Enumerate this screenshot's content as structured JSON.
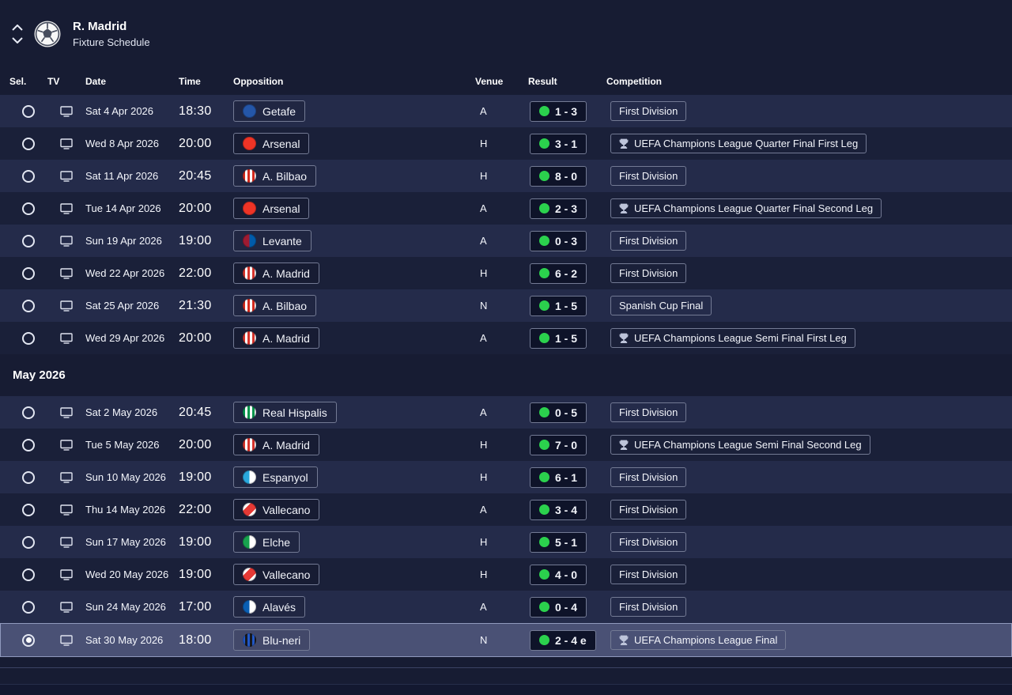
{
  "header": {
    "title": "R. Madrid",
    "subtitle": "Fixture Schedule"
  },
  "columns": {
    "sel": "Sel.",
    "tv": "TV",
    "date": "Date",
    "time": "Time",
    "opposition": "Opposition",
    "venue": "Venue",
    "result": "Result",
    "competition": "Competition"
  },
  "colors": {
    "background": "#171c33",
    "row_light": "#242b4a",
    "row_dark": "#1a2039",
    "row_selected": "#4a5175",
    "chip_border": "#737a94",
    "result_chip_bg": "#0e1329",
    "win_dot": "#2bd14d"
  },
  "table": [
    {
      "type": "fixture",
      "date": "Sat 4 Apr 2026",
      "time": "18:30",
      "opponent": "Getafe",
      "venue": "A",
      "result": "1 - 3",
      "competition": "First Division",
      "uefa": false,
      "selected": false,
      "badge": {
        "style": "solid",
        "colors": [
          "#2456a8"
        ]
      }
    },
    {
      "type": "fixture",
      "date": "Wed 8 Apr 2026",
      "time": "20:00",
      "opponent": "Arsenal",
      "venue": "H",
      "result": "3 - 1",
      "competition": "UEFA Champions League Quarter Final First Leg",
      "uefa": true,
      "selected": false,
      "badge": {
        "style": "solid",
        "colors": [
          "#ef3426"
        ]
      }
    },
    {
      "type": "fixture",
      "date": "Sat 11 Apr 2026",
      "time": "20:45",
      "opponent": "A. Bilbao",
      "venue": "H",
      "result": "8 - 0",
      "competition": "First Division",
      "uefa": false,
      "selected": false,
      "badge": {
        "style": "stripes",
        "colors": [
          "#d52b1e",
          "#ffffff"
        ]
      }
    },
    {
      "type": "fixture",
      "date": "Tue 14 Apr 2026",
      "time": "20:00",
      "opponent": "Arsenal",
      "venue": "A",
      "result": "2 - 3",
      "competition": "UEFA Champions League Quarter Final Second Leg",
      "uefa": true,
      "selected": false,
      "badge": {
        "style": "solid",
        "colors": [
          "#ef3426"
        ]
      }
    },
    {
      "type": "fixture",
      "date": "Sun 19 Apr 2026",
      "time": "19:00",
      "opponent": "Levante",
      "venue": "A",
      "result": "0 - 3",
      "competition": "First Division",
      "uefa": false,
      "selected": false,
      "badge": {
        "style": "split",
        "colors": [
          "#9e1b32",
          "#005baa"
        ]
      }
    },
    {
      "type": "fixture",
      "date": "Wed 22 Apr 2026",
      "time": "22:00",
      "opponent": "A. Madrid",
      "venue": "H",
      "result": "6 - 2",
      "competition": "First Division",
      "uefa": false,
      "selected": false,
      "badge": {
        "style": "stripes",
        "colors": [
          "#d6342c",
          "#ffffff"
        ]
      }
    },
    {
      "type": "fixture",
      "date": "Sat 25 Apr 2026",
      "time": "21:30",
      "opponent": "A. Bilbao",
      "venue": "N",
      "result": "1 - 5",
      "competition": "Spanish Cup Final",
      "uefa": false,
      "selected": false,
      "badge": {
        "style": "stripes",
        "colors": [
          "#d52b1e",
          "#ffffff"
        ]
      }
    },
    {
      "type": "fixture",
      "date": "Wed 29 Apr 2026",
      "time": "20:00",
      "opponent": "A. Madrid",
      "venue": "A",
      "result": "1 - 5",
      "competition": "UEFA Champions League Semi Final First Leg",
      "uefa": true,
      "selected": false,
      "badge": {
        "style": "stripes",
        "colors": [
          "#d6342c",
          "#ffffff"
        ]
      }
    },
    {
      "type": "section",
      "label": "May 2026"
    },
    {
      "type": "fixture",
      "date": "Sat 2 May 2026",
      "time": "20:45",
      "opponent": "Real Hispalis",
      "venue": "A",
      "result": "0 - 5",
      "competition": "First Division",
      "uefa": false,
      "selected": false,
      "badge": {
        "style": "stripes",
        "colors": [
          "#00954c",
          "#ffffff"
        ]
      }
    },
    {
      "type": "fixture",
      "date": "Tue 5 May 2026",
      "time": "20:00",
      "opponent": "A. Madrid",
      "venue": "H",
      "result": "7 - 0",
      "competition": "UEFA Champions League Semi Final Second Leg",
      "uefa": true,
      "selected": false,
      "badge": {
        "style": "stripes",
        "colors": [
          "#d6342c",
          "#ffffff"
        ]
      }
    },
    {
      "type": "fixture",
      "date": "Sun 10 May 2026",
      "time": "19:00",
      "opponent": "Espanyol",
      "venue": "H",
      "result": "6 - 1",
      "competition": "First Division",
      "uefa": false,
      "selected": false,
      "badge": {
        "style": "split",
        "colors": [
          "#29a8dd",
          "#ffffff"
        ]
      }
    },
    {
      "type": "fixture",
      "date": "Thu 14 May 2026",
      "time": "22:00",
      "opponent": "Vallecano",
      "venue": "A",
      "result": "3 - 4",
      "competition": "First Division",
      "uefa": false,
      "selected": false,
      "badge": {
        "style": "sash",
        "colors": [
          "#e53935",
          "#ffffff"
        ]
      }
    },
    {
      "type": "fixture",
      "date": "Sun 17 May 2026",
      "time": "19:00",
      "opponent": "Elche",
      "venue": "H",
      "result": "5 - 1",
      "competition": "First Division",
      "uefa": false,
      "selected": false,
      "badge": {
        "style": "split",
        "colors": [
          "#17a24e",
          "#ffffff"
        ]
      }
    },
    {
      "type": "fixture",
      "date": "Wed 20 May 2026",
      "time": "19:00",
      "opponent": "Vallecano",
      "venue": "H",
      "result": "4 - 0",
      "competition": "First Division",
      "uefa": false,
      "selected": false,
      "badge": {
        "style": "sash",
        "colors": [
          "#e53935",
          "#ffffff"
        ]
      }
    },
    {
      "type": "fixture",
      "date": "Sun 24 May 2026",
      "time": "17:00",
      "opponent": "Alavés",
      "venue": "A",
      "result": "0 - 4",
      "competition": "First Division",
      "uefa": false,
      "selected": false,
      "badge": {
        "style": "split",
        "colors": [
          "#0a5fb4",
          "#ffffff"
        ]
      }
    },
    {
      "type": "fixture",
      "date": "Sat 30 May 2026",
      "time": "18:00",
      "opponent": "Blu-neri",
      "venue": "N",
      "result": "2 - 4 e",
      "competition": "UEFA Champions League Final",
      "uefa": true,
      "selected": true,
      "badge": {
        "style": "stripes",
        "colors": [
          "#2257c5",
          "#17191f"
        ]
      }
    }
  ]
}
